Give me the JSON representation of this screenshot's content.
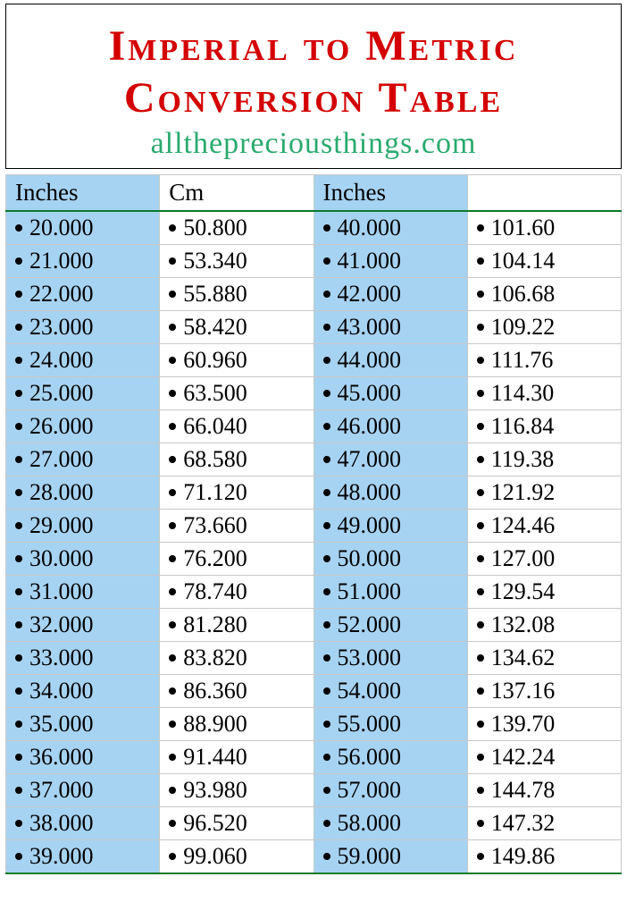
{
  "header": {
    "title_line1": "Imperial to Metric",
    "title_line2": "Conversion Table",
    "subtitle": "allthepreciousthings.com"
  },
  "table": {
    "type": "table",
    "columns": [
      {
        "label": "Inches",
        "alt": true
      },
      {
        "label": "Cm",
        "alt": false
      },
      {
        "label": "Inches",
        "alt": true
      },
      {
        "label": "",
        "alt": false
      }
    ],
    "column_bg_alt": "#a7d3f2",
    "column_bg": "#ffffff",
    "border_color": "#c8c8c8",
    "header_underline_color": "#0a7a2a",
    "text_color": "#000000",
    "font_size": 26,
    "rows": [
      [
        "20.000",
        "50.800",
        "40.000",
        "101.60"
      ],
      [
        "21.000",
        "53.340",
        "41.000",
        "104.14"
      ],
      [
        "22.000",
        "55.880",
        "42.000",
        "106.68"
      ],
      [
        "23.000",
        "58.420",
        "43.000",
        "109.22"
      ],
      [
        "24.000",
        "60.960",
        "44.000",
        "111.76"
      ],
      [
        "25.000",
        "63.500",
        "45.000",
        "114.30"
      ],
      [
        "26.000",
        "66.040",
        "46.000",
        "116.84"
      ],
      [
        "27.000",
        "68.580",
        "47.000",
        "119.38"
      ],
      [
        "28.000",
        "71.120",
        "48.000",
        "121.92"
      ],
      [
        "29.000",
        "73.660",
        "49.000",
        "124.46"
      ],
      [
        "30.000",
        "76.200",
        "50.000",
        "127.00"
      ],
      [
        "31.000",
        "78.740",
        "51.000",
        "129.54"
      ],
      [
        "32.000",
        "81.280",
        "52.000",
        "132.08"
      ],
      [
        "33.000",
        "83.820",
        "53.000",
        "134.62"
      ],
      [
        "34.000",
        "86.360",
        "54.000",
        "137.16"
      ],
      [
        "35.000",
        "88.900",
        "55.000",
        "139.70"
      ],
      [
        "36.000",
        "91.440",
        "56.000",
        "142.24"
      ],
      [
        "37.000",
        "93.980",
        "57.000",
        "144.78"
      ],
      [
        "38.000",
        "96.520",
        "58.000",
        "147.32"
      ],
      [
        "39.000",
        "99.060",
        "59.000",
        "149.86"
      ]
    ]
  },
  "colors": {
    "title": "#d40000",
    "subtitle": "#2aaa6e",
    "background": "#ffffff"
  }
}
